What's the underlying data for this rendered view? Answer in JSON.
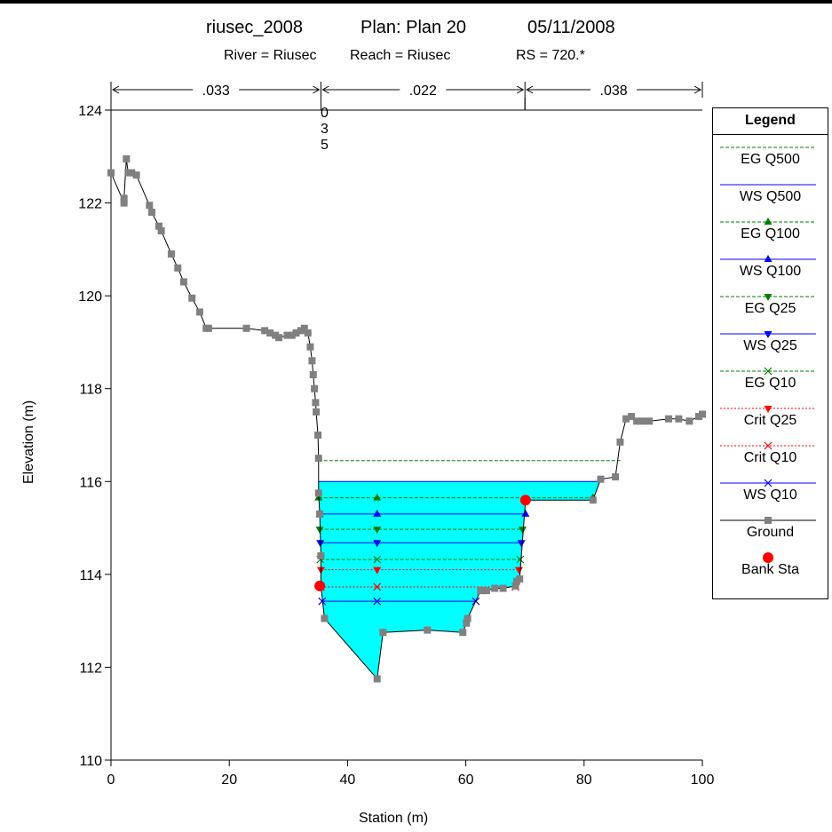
{
  "title": {
    "plan_name": "riusec_2008",
    "plan": "Plan: Plan 20",
    "date": "05/11/2008",
    "river": "River = Riusec",
    "reach": "Reach = Riusec",
    "rs": "RS = 720.*"
  },
  "chart_data": {
    "type": "line",
    "xlabel": "Station (m)",
    "ylabel": "Elevation (m)",
    "xlim": [
      0,
      100
    ],
    "ylim": [
      110,
      124
    ],
    "xticks": [
      0,
      20,
      40,
      60,
      80,
      100
    ],
    "yticks": [
      110,
      112,
      114,
      116,
      118,
      120,
      122,
      124
    ],
    "grid": false,
    "legend_placement": "right",
    "mannings": [
      {
        "label": ".033",
        "from": 0,
        "to": 35.5
      },
      {
        "label": ".022",
        "from": 35.5,
        "to": 70
      },
      {
        "label": ".038",
        "from": 70,
        "to": 100
      }
    ],
    "mannings_vertical_label": [
      "0",
      "3",
      "5"
    ],
    "ground": [
      [
        0,
        122.65
      ],
      [
        2.2,
        122
      ],
      [
        2.2,
        122.1
      ],
      [
        2.6,
        122.95
      ],
      [
        2.9,
        122.65
      ],
      [
        3.5,
        122.65
      ],
      [
        4.3,
        122.6
      ],
      [
        6.5,
        121.95
      ],
      [
        6.9,
        121.8
      ],
      [
        8.1,
        121.5
      ],
      [
        8.5,
        121.4
      ],
      [
        10.2,
        120.9
      ],
      [
        11.3,
        120.6
      ],
      [
        12.3,
        120.3
      ],
      [
        13.7,
        119.95
      ],
      [
        15,
        119.65
      ],
      [
        16.1,
        119.3
      ],
      [
        16.5,
        119.3
      ],
      [
        22.9,
        119.3
      ],
      [
        26,
        119.25
      ],
      [
        26.9,
        119.2
      ],
      [
        27.8,
        119.15
      ],
      [
        28.4,
        119.1
      ],
      [
        29.8,
        119.15
      ],
      [
        30.6,
        119.15
      ],
      [
        31.3,
        119.2
      ],
      [
        32.1,
        119.25
      ],
      [
        32.7,
        119.3
      ],
      [
        33.3,
        119.2
      ],
      [
        33.7,
        118.9
      ],
      [
        34,
        118.6
      ],
      [
        34.2,
        118.3
      ],
      [
        34.4,
        118
      ],
      [
        34.6,
        117.7
      ],
      [
        34.7,
        117.5
      ],
      [
        35,
        117
      ],
      [
        35.1,
        116.5
      ],
      [
        35.1,
        115.75
      ],
      [
        35.3,
        115.3
      ],
      [
        35.5,
        114.4
      ],
      [
        35.5,
        113.75
      ],
      [
        36.1,
        113.05
      ],
      [
        45,
        111.75
      ],
      [
        46,
        112.75
      ],
      [
        53.5,
        112.8
      ],
      [
        59.5,
        112.75
      ],
      [
        60.1,
        112.95
      ],
      [
        60.3,
        113.05
      ],
      [
        62.5,
        113.65
      ],
      [
        63.5,
        113.65
      ],
      [
        64.9,
        113.7
      ],
      [
        66.3,
        113.7
      ],
      [
        68.4,
        113.75
      ],
      [
        68.6,
        113.85
      ],
      [
        69.1,
        113.9
      ],
      [
        70.1,
        115.6
      ],
      [
        81.5,
        115.6
      ],
      [
        82.8,
        116.05
      ],
      [
        85.3,
        116.1
      ],
      [
        86.1,
        116.85
      ],
      [
        87.1,
        117.35
      ],
      [
        88,
        117.4
      ],
      [
        88.9,
        117.3
      ],
      [
        89.9,
        117.3
      ],
      [
        91,
        117.3
      ],
      [
        94.3,
        117.35
      ],
      [
        96,
        117.35
      ],
      [
        97.8,
        117.3
      ],
      [
        99.4,
        117.4
      ],
      [
        100,
        117.45
      ]
    ],
    "bank_stations": [
      [
        35.3,
        113.75
      ],
      [
        70.1,
        115.6
      ]
    ],
    "water_extent": [
      35.1,
      83
    ],
    "series": [
      {
        "name": "EG Q500",
        "elev": 116.45,
        "x1": 35.1,
        "x2": 86.3,
        "style": "dashed",
        "color": "#008000",
        "marker": "none"
      },
      {
        "name": "WS Q500",
        "elev": 116.0,
        "x1": 35.1,
        "x2": 82.9,
        "style": "solid",
        "color": "#0000ff",
        "marker": "none"
      },
      {
        "name": "EG Q100",
        "elev": 115.65,
        "x1": 35.1,
        "x2": 81.5,
        "style": "dashed",
        "color": "#008000",
        "marker": "tri-up",
        "markers_x": [
          35.1,
          45,
          81.5
        ]
      },
      {
        "name": "WS Q100",
        "elev": 115.3,
        "x1": 35.3,
        "x2": 70.1,
        "style": "solid",
        "color": "#0000ff",
        "marker": "tri-up",
        "markers_x": [
          35.3,
          45,
          70.1
        ]
      },
      {
        "name": "EG Q25",
        "elev": 114.97,
        "x1": 35.3,
        "x2": 69.6,
        "style": "dashed",
        "color": "#008000",
        "marker": "tri-down",
        "markers_x": [
          35.3,
          45,
          69.6
        ]
      },
      {
        "name": "WS Q25",
        "elev": 114.68,
        "x1": 35.4,
        "x2": 69.4,
        "style": "solid",
        "color": "#0000ff",
        "marker": "tri-down",
        "markers_x": [
          35.4,
          45,
          69.4
        ]
      },
      {
        "name": "EG Q10",
        "elev": 114.32,
        "x1": 35.4,
        "x2": 69.2,
        "style": "dashed",
        "color": "#008000",
        "marker": "x",
        "markers_x": [
          35.4,
          45,
          69.2
        ]
      },
      {
        "name": "Crit Q25",
        "elev": 114.1,
        "x1": 35.5,
        "x2": 69.0,
        "style": "dotted",
        "color": "#ff0000",
        "marker": "tri-down",
        "markers_x": [
          35.5,
          45,
          69.0
        ]
      },
      {
        "name": "Crit Q10",
        "elev": 113.73,
        "x1": 35.5,
        "x2": 68.4,
        "style": "dotted",
        "color": "#ff0000",
        "marker": "x",
        "markers_x": [
          35.5,
          45,
          68.4
        ]
      },
      {
        "name": "WS Q10",
        "elev": 113.42,
        "x1": 35.7,
        "x2": 61.7,
        "style": "solid",
        "color": "#0000ff",
        "marker": "x",
        "markers_x": [
          35.7,
          45,
          61.7
        ]
      }
    ],
    "legend": [
      {
        "name": "EG Q500",
        "style": "dashed",
        "color": "#008000",
        "marker": "none"
      },
      {
        "name": "WS Q500",
        "style": "solid",
        "color": "#0000ff",
        "marker": "none"
      },
      {
        "name": "EG Q100",
        "style": "dashed",
        "color": "#008000",
        "marker": "tri-up"
      },
      {
        "name": "WS Q100",
        "style": "solid",
        "color": "#0000ff",
        "marker": "tri-up"
      },
      {
        "name": "EG Q25",
        "style": "dashed",
        "color": "#008000",
        "marker": "tri-down"
      },
      {
        "name": "WS Q25",
        "style": "solid",
        "color": "#0000ff",
        "marker": "tri-down"
      },
      {
        "name": "EG Q10",
        "style": "dashed",
        "color": "#008000",
        "marker": "x"
      },
      {
        "name": "Crit Q25",
        "style": "dotted",
        "color": "#ff0000",
        "marker": "tri-down"
      },
      {
        "name": "Crit Q10",
        "style": "dotted",
        "color": "#ff0000",
        "marker": "x"
      },
      {
        "name": "WS Q10",
        "style": "solid",
        "color": "#0000ff",
        "marker": "x"
      },
      {
        "name": "Ground",
        "style": "solid",
        "color": "#000000",
        "marker": "square",
        "marker_color": "#808080"
      },
      {
        "name": "Bank Sta",
        "style": "none",
        "color": "#ff0000",
        "marker": "circle"
      }
    ],
    "legend_title": "Legend",
    "colors": {
      "water": "#00ffff",
      "ground_marker": "#808080",
      "bank": "#ff0000"
    }
  }
}
